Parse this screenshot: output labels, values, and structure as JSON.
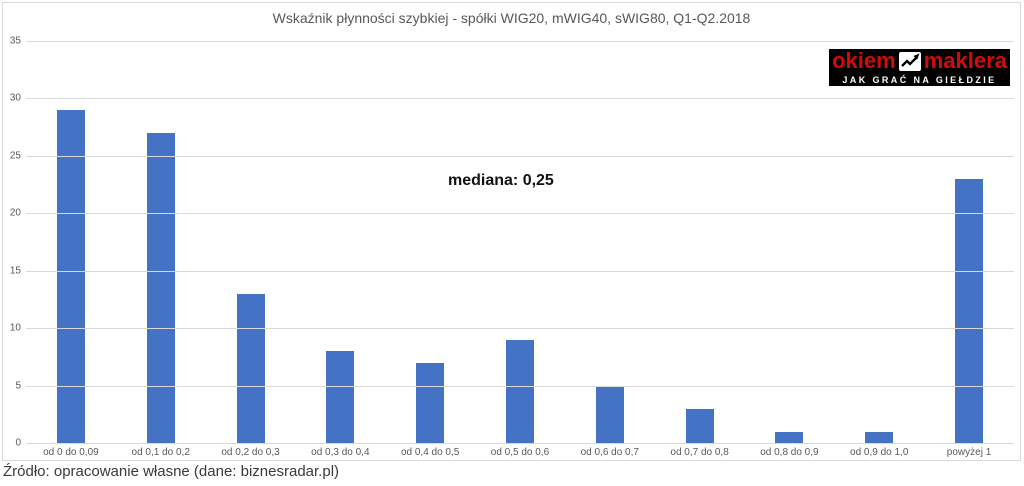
{
  "meta": {
    "source": "Źródło: opracowanie własne (dane: biznesradar.pl)"
  },
  "logo": {
    "word1": "okiem",
    "word2": "maklera",
    "tagline": "JAK GRAĆ NA GIEŁDZIE",
    "bg_color": "#000000",
    "text_color": "#d20a0a",
    "tagline_color": "#ffffff",
    "icon": "chart-up-icon"
  },
  "chart_data": {
    "type": "bar",
    "title": "Wskaźnik płynności szybkiej - spółki WIG20, mWIG40, sWIG80, Q1-Q2.2018",
    "categories": [
      "od 0 do 0,09",
      "od 0,1 do 0,2",
      "od 0,2 do 0,3",
      "od 0,3 do 0,4",
      "od 0,4 do 0,5",
      "od 0,5 do 0,6",
      "od 0,6 do 0,7",
      "od 0,7 do 0,8",
      "od 0,8 do 0,9",
      "od 0,9 do 1,0",
      "powyżej 1"
    ],
    "values": [
      29,
      27,
      13,
      8,
      7,
      9,
      5,
      3,
      1,
      1,
      23
    ],
    "xlabel": "",
    "ylabel": "",
    "ylim": [
      0,
      35
    ],
    "yticks": [
      0,
      5,
      10,
      15,
      20,
      25,
      30,
      35
    ],
    "grid": true,
    "legend": "none",
    "bar_color": "#4472C4",
    "gridline_color": "#d9d9d9",
    "annotation": {
      "text": "mediana: 0,25"
    }
  }
}
